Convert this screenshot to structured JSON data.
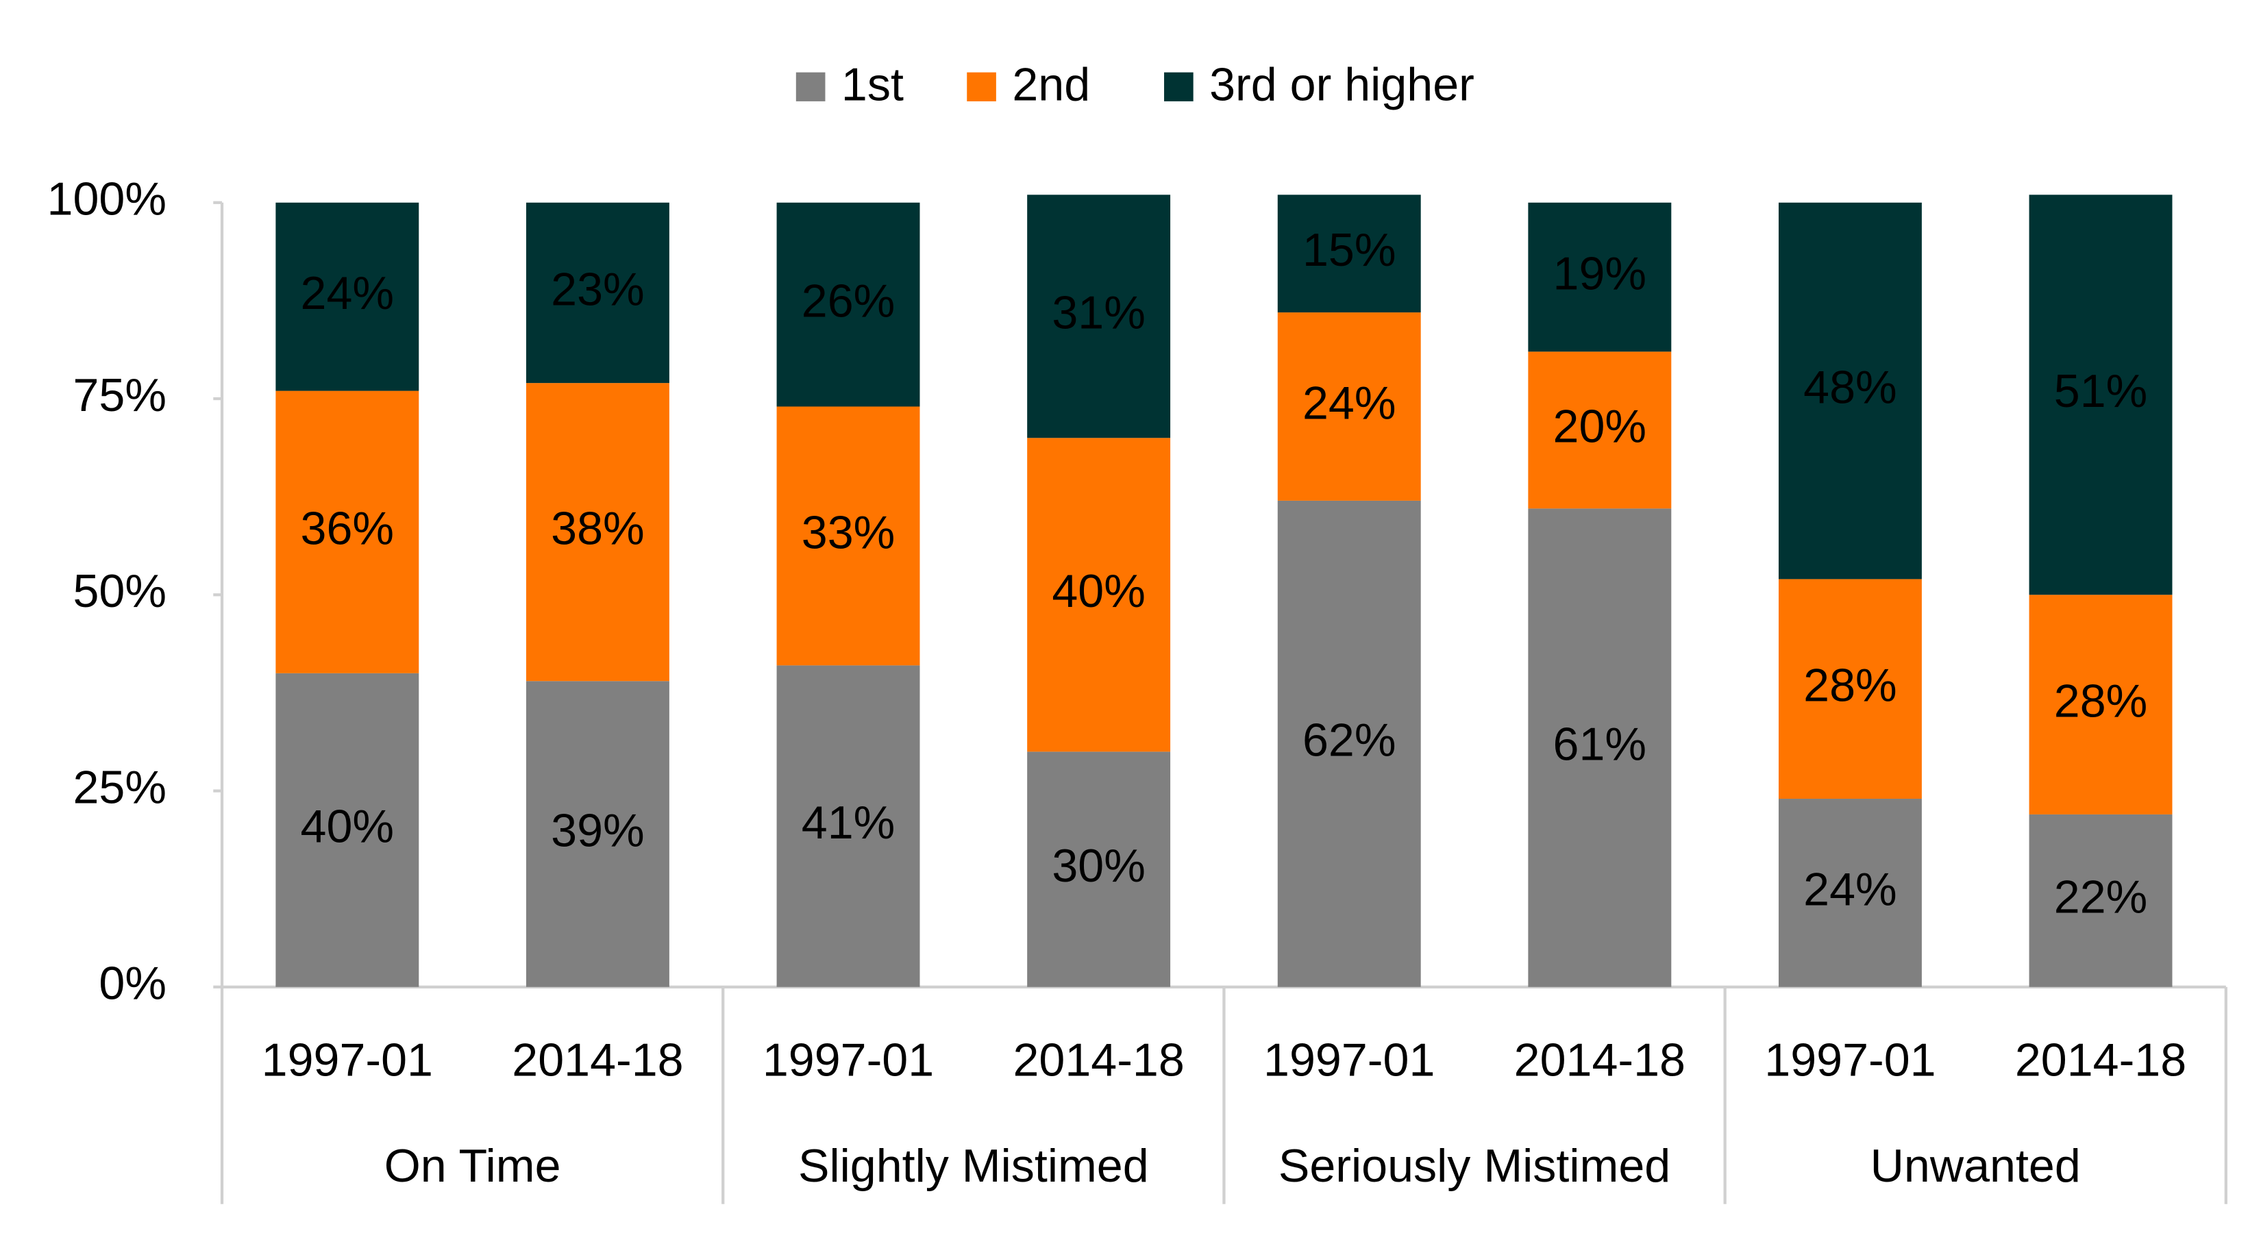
{
  "chart_data": {
    "type": "stacked_bar",
    "groups": [
      {
        "name": "On Time",
        "categories": [
          "1997-01",
          "2014-18"
        ]
      },
      {
        "name": "Slightly Mistimed",
        "categories": [
          "1997-01",
          "2014-18"
        ]
      },
      {
        "name": "Seriously Mistimed",
        "categories": [
          "1997-01",
          "2014-18"
        ]
      },
      {
        "name": "Unwanted",
        "categories": [
          "1997-01",
          "2014-18"
        ]
      }
    ],
    "series": [
      {
        "name": "1st",
        "color": "#808080",
        "values": [
          40,
          39,
          41,
          30,
          62,
          61,
          24,
          22
        ],
        "value_labels": [
          "40%",
          "39%",
          "41%",
          "30%",
          "62%",
          "61%",
          "24%",
          "22%"
        ]
      },
      {
        "name": "2nd",
        "color": "#ff7500",
        "values": [
          36,
          38,
          33,
          40,
          24,
          20,
          28,
          28
        ],
        "value_labels": [
          "36%",
          "38%",
          "33%",
          "40%",
          "24%",
          "20%",
          "28%",
          "28%"
        ]
      },
      {
        "name": "3rd or higher",
        "color": "#003333",
        "values": [
          24,
          23,
          26,
          31,
          15,
          19,
          48,
          51
        ],
        "value_labels": [
          "24%",
          "23%",
          "26%",
          "31%",
          "15%",
          "19%",
          "48%",
          "51%"
        ]
      }
    ],
    "ylim": [
      0,
      100
    ],
    "yticks": [
      {
        "value": 0,
        "label": "0%"
      },
      {
        "value": 25,
        "label": "25%"
      },
      {
        "value": 50,
        "label": "50%"
      },
      {
        "value": 75,
        "label": "75%"
      },
      {
        "value": 100,
        "label": "100%"
      }
    ],
    "legend": "top"
  }
}
